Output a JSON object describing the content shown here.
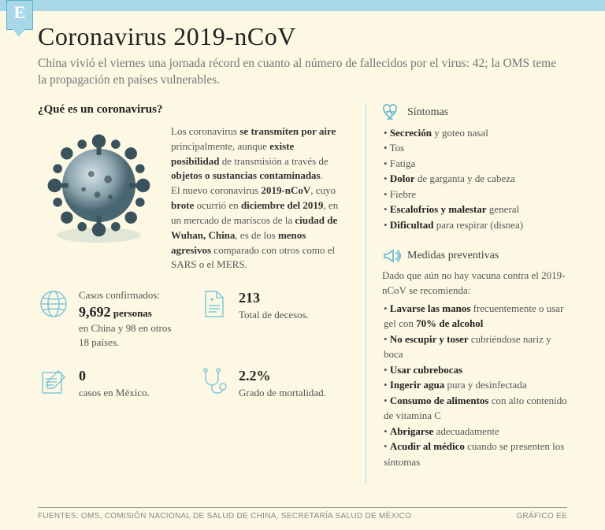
{
  "logo_letter": "E",
  "title": "Coronavirus 2019-nCoV",
  "subtitle": "China vivió el viernes una jornada récord en cuanto al número de fallecidos por el virus: 42; la OMS teme la propagación en países vulnerables.",
  "question": "¿Qué es un coronavirus?",
  "description_html": "Los coronavirus <b>se transmiten por aire</b> principalmente, aunque <b>existe posibilidad</b> de transmisión a través de <b>objetos o sustancias contaminadas</b>.<br>El nuevo coronavirus <b>2019-nCoV</b>, cuyo <b>brote</b> ocurrió en <b>diciembre del 2019</b>, en un mercado de mariscos de la <b>ciudad de Wuhan, China</b>, es de los <b>menos agresivos</b> comparado con otros como el SARS o el MERS.",
  "stats": {
    "confirmed": {
      "label_pre": "Casos confirmados:",
      "value": "9,692",
      "unit": "personas",
      "label_post": "en China y 98 en otros 18 países."
    },
    "deaths": {
      "value": "213",
      "label": "Total de decesos."
    },
    "mexico": {
      "value": "0",
      "label": "casos en México."
    },
    "mortality": {
      "value": "2.2%",
      "label": "Grado de mortalidad."
    }
  },
  "symptoms": {
    "heading": "Síntomas",
    "items_html": [
      "• <b>Secreción</b> y goteo nasal",
      "• Tos",
      "• Fatiga",
      "• <b>Dolor</b> de garganta y de cabeza",
      "• Fiebre",
      "• <b>Escalofríos y malestar</b> general",
      "• <b>Dificultad</b> para respirar (disnea)"
    ]
  },
  "prevention": {
    "heading": "Medidas preventivas",
    "intro": "Dado que aún no hay vacuna contra el 2019-nCoV se recomienda:",
    "items_html": [
      "• <b>Lavarse las manos</b> frecuentemente o usar gel con <b>70% de alcohol</b>",
      "• <b>No escupir y toser</b> cubriéndose nariz y boca",
      "• <b>Usar cubrebocas</b>",
      "• <b>Ingerir agua</b> pura y desinfectada",
      "• <b>Consumo de alimentos</b> con alto contenido de vitamina C",
      "• <b>Abrigarse</b> adecuadamente",
      "• <b>Acudir al médico</b> cuando se presenten los síntomas"
    ]
  },
  "footer": {
    "sources": "FUENTES: OMS, COMISIÓN NACIONAL DE SALUD DE CHINA, SECRETARÍA SALUD DE MÉXICO",
    "credit": "GRÁFICO EE"
  },
  "colors": {
    "bg": "#fdf8e4",
    "accent": "#a8d8e8",
    "icon": "#7fc8d8",
    "text": "#555",
    "bold": "#222"
  }
}
